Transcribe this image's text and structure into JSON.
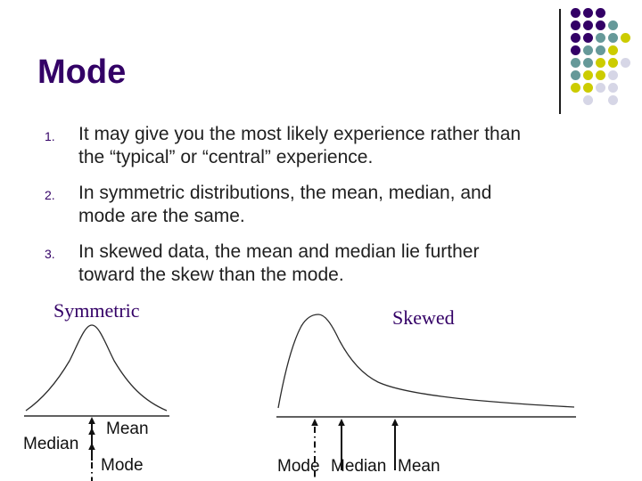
{
  "colors": {
    "title-purple": "#330066",
    "line-dark": "#2b2b2b",
    "arrow-black": "#111111",
    "dot-purple": "#330066",
    "dot-teal": "#669999",
    "dot-yellow": "#CCCC00",
    "dot-lavender": "#D6D6E6"
  },
  "title": "Mode",
  "list": [
    {
      "number": "1.",
      "lines": [
        "It may give you the most likely experience rather than",
        "the “typical” or “central” experience."
      ]
    },
    {
      "number": "2.",
      "lines": [
        "In symmetric distributions, the mean, median, and",
        "mode are the same."
      ]
    },
    {
      "number": "3.",
      "lines": [
        "In skewed data, the mean and median lie further",
        "toward the skew than the mode."
      ]
    }
  ],
  "symmetric": {
    "title": "Symmetric",
    "mean_label": "Mean",
    "median_label": "Median",
    "mode_label": "Mode"
  },
  "skewed": {
    "title": "Skewed",
    "mode_label": "Mode",
    "median_label": "Median",
    "mean_label": "Mean"
  },
  "decoration": {
    "dot_pattern": [
      [
        "P",
        "P",
        "P",
        "",
        ""
      ],
      [
        "P",
        "P",
        "P",
        "T",
        ""
      ],
      [
        "P",
        "P",
        "T",
        "T",
        "Y"
      ],
      [
        "P",
        "T",
        "T",
        "Y",
        ""
      ],
      [
        "T",
        "T",
        "Y",
        "Y",
        "L"
      ],
      [
        "T",
        "Y",
        "Y",
        "L",
        ""
      ],
      [
        "Y",
        "Y",
        "L",
        "L",
        ""
      ],
      [
        "",
        "L",
        "",
        "L",
        ""
      ]
    ],
    "dot_color_map": {
      "P": "dot-purple",
      "T": "dot-teal",
      "Y": "dot-yellow",
      "L": "dot-lavender"
    }
  }
}
